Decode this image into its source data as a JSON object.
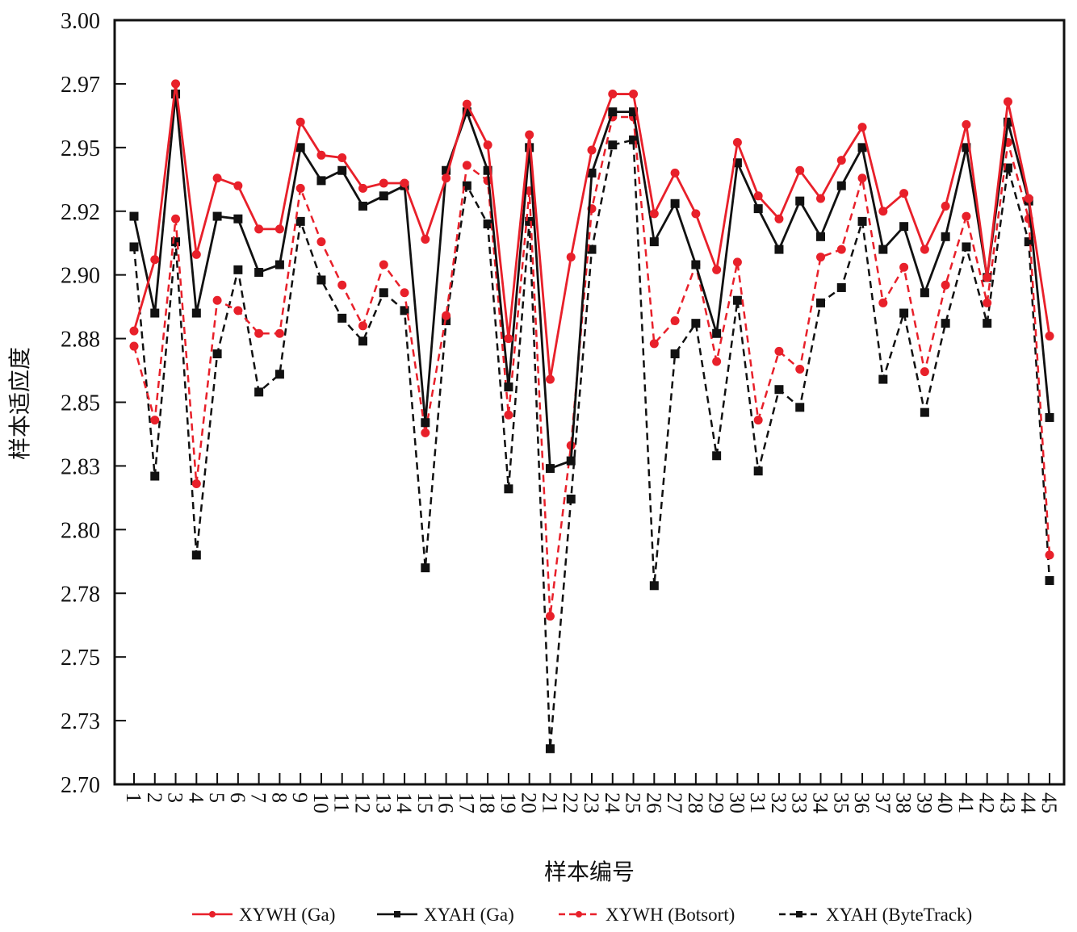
{
  "chart_data": {
    "type": "line",
    "title": "",
    "xlabel": "样本编号",
    "ylabel": "样本适应度",
    "ylim": [
      2.7,
      3.0
    ],
    "ytick_values": [
      2.7,
      2.725,
      2.75,
      2.775,
      2.8,
      2.825,
      2.85,
      2.875,
      2.9,
      2.925,
      2.95,
      2.975,
      3.0
    ],
    "ytick_labels": [
      "2.70",
      "2.73",
      "2.75",
      "2.78",
      "2.80",
      "2.83",
      "2.85",
      "2.88",
      "2.90",
      "2.92",
      "2.95",
      "2.97",
      "3.00"
    ],
    "x": [
      1,
      2,
      3,
      4,
      5,
      6,
      7,
      8,
      9,
      10,
      11,
      12,
      13,
      14,
      15,
      16,
      17,
      18,
      19,
      20,
      21,
      22,
      23,
      24,
      25,
      26,
      27,
      28,
      29,
      30,
      31,
      32,
      33,
      34,
      35,
      36,
      37,
      38,
      39,
      40,
      41,
      42,
      43,
      44,
      45
    ],
    "xtick_labels": [
      "1",
      "2",
      "3",
      "4",
      "5",
      "6",
      "7",
      "8",
      "9",
      "10",
      "11",
      "12",
      "13",
      "14",
      "15",
      "16",
      "17",
      "18",
      "19",
      "20",
      "21",
      "22",
      "23",
      "24",
      "25",
      "26",
      "27",
      "28",
      "29",
      "30",
      "31",
      "32",
      "33",
      "34",
      "35",
      "36",
      "37",
      "38",
      "39",
      "40",
      "41",
      "42",
      "43",
      "44",
      "45"
    ],
    "grid": false,
    "legend_position": "bottom",
    "series": [
      {
        "name": "XYWH (Ga)",
        "color": "#e8202a",
        "dashed": false,
        "marker": "circle",
        "values": [
          2.878,
          2.906,
          2.975,
          2.908,
          2.938,
          2.935,
          2.918,
          2.918,
          2.96,
          2.947,
          2.946,
          2.934,
          2.936,
          2.936,
          2.914,
          2.938,
          2.967,
          2.951,
          2.875,
          2.955,
          2.859,
          2.907,
          2.949,
          2.971,
          2.971,
          2.924,
          2.94,
          2.924,
          2.902,
          2.952,
          2.931,
          2.922,
          2.941,
          2.93,
          2.945,
          2.958,
          2.925,
          2.932,
          2.91,
          2.927,
          2.959,
          2.899,
          2.968,
          2.93,
          2.876
        ]
      },
      {
        "name": "XYAH (Ga)",
        "color": "#111111",
        "dashed": false,
        "marker": "square",
        "values": [
          2.923,
          2.885,
          2.971,
          2.885,
          2.923,
          2.922,
          2.901,
          2.904,
          2.95,
          2.937,
          2.941,
          2.927,
          2.931,
          2.935,
          2.842,
          2.941,
          2.964,
          2.941,
          2.856,
          2.95,
          2.824,
          2.827,
          2.94,
          2.964,
          2.964,
          2.913,
          2.928,
          2.904,
          2.877,
          2.944,
          2.926,
          2.91,
          2.929,
          2.915,
          2.935,
          2.95,
          2.91,
          2.919,
          2.893,
          2.915,
          2.95,
          2.899,
          2.96,
          2.929,
          2.844
        ]
      },
      {
        "name": "XYWH (Botsort)",
        "color": "#e8202a",
        "dashed": true,
        "marker": "circle",
        "values": [
          2.872,
          2.843,
          2.922,
          2.818,
          2.89,
          2.886,
          2.877,
          2.877,
          2.934,
          2.913,
          2.896,
          2.88,
          2.904,
          2.893,
          2.838,
          2.884,
          2.943,
          2.937,
          2.845,
          2.933,
          2.766,
          2.833,
          2.926,
          2.962,
          2.962,
          2.873,
          2.882,
          2.904,
          2.866,
          2.905,
          2.843,
          2.87,
          2.863,
          2.907,
          2.91,
          2.938,
          2.889,
          2.903,
          2.862,
          2.896,
          2.923,
          2.889,
          2.952,
          2.922,
          2.79
        ]
      },
      {
        "name": "XYAH (ByteTrack)",
        "color": "#111111",
        "dashed": true,
        "marker": "square",
        "values": [
          2.911,
          2.821,
          2.913,
          2.79,
          2.869,
          2.902,
          2.854,
          2.861,
          2.921,
          2.898,
          2.883,
          2.874,
          2.893,
          2.886,
          2.785,
          2.882,
          2.935,
          2.92,
          2.816,
          2.921,
          2.714,
          2.812,
          2.91,
          2.951,
          2.953,
          2.778,
          2.869,
          2.881,
          2.829,
          2.89,
          2.823,
          2.855,
          2.848,
          2.889,
          2.895,
          2.921,
          2.859,
          2.885,
          2.846,
          2.881,
          2.911,
          2.881,
          2.942,
          2.913,
          2.78
        ]
      }
    ]
  }
}
